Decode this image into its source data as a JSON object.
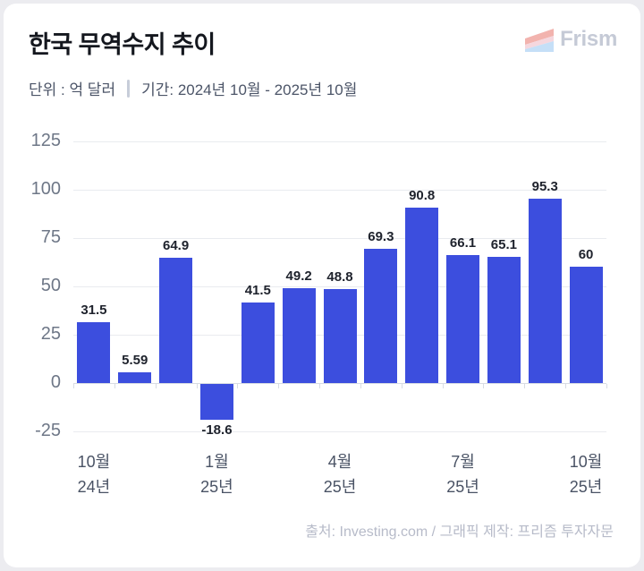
{
  "header": {
    "title": "한국 무역수지 추이",
    "unit_label": "단위 : 억 달러",
    "period_label": "기간: 2024년 10월 - 2025년 10월",
    "brand": "Frism"
  },
  "footer": {
    "source": "출처: Investing.com / 그래픽 제작: 프리즘 투자자문"
  },
  "colors": {
    "bar": "#3c4ede",
    "page_bg": "#ececf0",
    "card_bg": "#ffffff",
    "grid": "#e9ebef",
    "axis": "#d8dce3",
    "title_text": "#14171e",
    "subtitle_text": "#4c5568",
    "y_label_text": "#6e7787",
    "x_label_text": "#4a5365",
    "value_label_text": "#1e222c",
    "brand_text": "#c5cad6",
    "source_text": "#b7bbc9",
    "logo_stripe_top": "#f2b3ae",
    "logo_stripe_mid": "#f5d7de",
    "logo_stripe_bottom": "#c5dff7"
  },
  "chart_data": {
    "type": "bar",
    "title": "한국 무역수지 추이",
    "unit": "억 달러",
    "period": "2024년 10월 - 2025년 10월",
    "categories": [
      "2024-10",
      "2024-11",
      "2024-12",
      "2025-01",
      "2025-02",
      "2025-03",
      "2025-04",
      "2025-05",
      "2025-06",
      "2025-07",
      "2025-08",
      "2025-09",
      "2025-10"
    ],
    "values": [
      31.5,
      5.59,
      64.9,
      -18.6,
      41.5,
      49.2,
      48.8,
      69.3,
      90.8,
      66.1,
      65.1,
      95.3,
      60
    ],
    "value_labels": [
      "31.5",
      "5.59",
      "64.9",
      "-18.6",
      "41.5",
      "49.2",
      "48.8",
      "69.3",
      "90.8",
      "66.1",
      "65.1",
      "95.3",
      "60"
    ],
    "y_ticks": [
      125,
      100,
      75,
      50,
      25,
      0,
      -25
    ],
    "ylim": [
      -25,
      125
    ],
    "grid": true,
    "legend": false,
    "x_tick_labels": [
      {
        "index": 0,
        "line1": "10월",
        "line2": "24년"
      },
      {
        "index": 3,
        "line1": "1월",
        "line2": "25년"
      },
      {
        "index": 6,
        "line1": "4월",
        "line2": "25년"
      },
      {
        "index": 9,
        "line1": "7월",
        "line2": "25년"
      },
      {
        "index": 12,
        "line1": "10월",
        "line2": "25년"
      }
    ]
  }
}
